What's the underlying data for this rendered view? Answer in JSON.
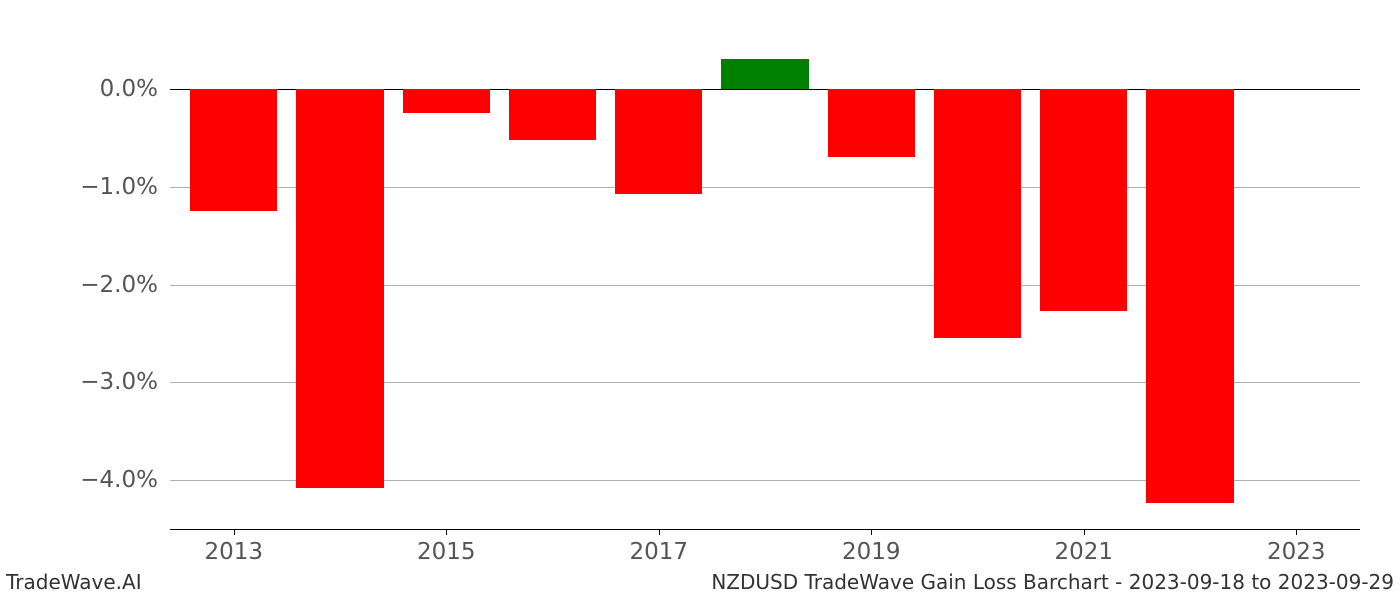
{
  "chart": {
    "type": "bar",
    "years": [
      2013,
      2014,
      2015,
      2016,
      2017,
      2018,
      2019,
      2020,
      2021,
      2022,
      2023
    ],
    "values": [
      -1.25,
      -4.08,
      -0.25,
      -0.52,
      -1.07,
      0.31,
      -0.7,
      -2.55,
      -2.27,
      -4.23,
      0.0
    ],
    "positive_color": "#008000",
    "negative_color": "#ff0000",
    "background_color": "#ffffff",
    "grid_color": "#b0b0b0",
    "axis_color": "#000000",
    "tick_label_color": "#555555",
    "y_ticks": [
      0.0,
      -1.0,
      -2.0,
      -3.0,
      -4.0
    ],
    "y_tick_labels": [
      "0.0%",
      "−1.0%",
      "−2.0%",
      "−3.0%",
      "−4.0%"
    ],
    "x_ticks": [
      2013,
      2015,
      2017,
      2019,
      2021,
      2023
    ],
    "x_tick_labels": [
      "2013",
      "2015",
      "2017",
      "2019",
      "2021",
      "2023"
    ],
    "y_min": -4.5,
    "y_max": 0.5,
    "x_min": 2012.4,
    "x_max": 2023.6,
    "bar_width_years": 0.82,
    "label_fontsize": 23
  },
  "footer": {
    "left": "TradeWave.AI",
    "right": "NZDUSD TradeWave Gain Loss Barchart - 2023-09-18 to 2023-09-29"
  }
}
